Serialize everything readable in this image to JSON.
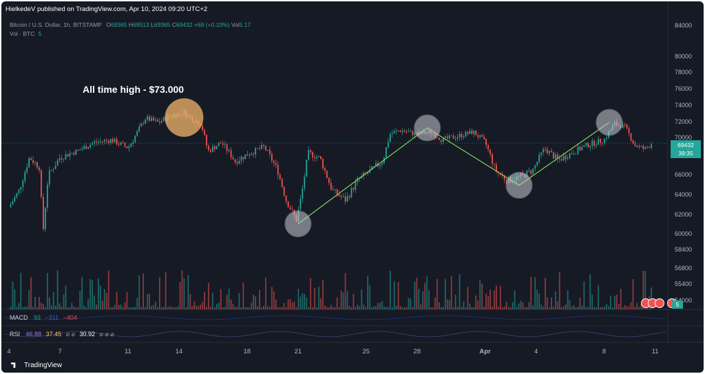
{
  "header": {
    "published": "HielkedeV published on TradingView.com, Apr 10, 2024 09:20 UTC+2",
    "symbol": "Bitcoin / U.S. Dollar, 1h, BITSTAMP",
    "o_label": "O",
    "o": "69365",
    "h_label": "H",
    "h": "69513",
    "l_label": "L",
    "l": "69365",
    "c_label": "C",
    "c": "69432",
    "change": "+69 (+0.10%)",
    "vol_label": "Vol",
    "vol_value": "5.17",
    "vol_pane_label": "Vol · BTC",
    "vol_pane_value": "5"
  },
  "indicators": {
    "macd": {
      "name": "MACD",
      "v1": "93",
      "v2": "−311",
      "v3": "−404"
    },
    "rsi": {
      "name": "RSI",
      "v1": "46.88",
      "v2": "37.45",
      "sym1": "⌀ ⌀",
      "v3": "30.92",
      "sym2": "⌀ ⌀ ⌀"
    }
  },
  "annotation": {
    "ath_text": "All time high - $73.000"
  },
  "price_tag": {
    "price": "69432",
    "countdown": "39:35"
  },
  "vol_tag": "5",
  "footer": {
    "brand": "TradingView"
  },
  "colors": {
    "bg": "#161a25",
    "up": "#26a69a",
    "down": "#ef5350",
    "trend": "#7ed957",
    "circle": "#c8cbd2",
    "ath_circle": "#f3b56b"
  },
  "chart_data": {
    "type": "candlestick",
    "title": "Bitcoin / U.S. Dollar, 1h, BITSTAMP",
    "y_ticks": [
      84000,
      80000,
      78000,
      76000,
      74000,
      72000,
      70000,
      68000,
      66000,
      64000,
      62000,
      60000,
      58400,
      56800,
      55400,
      54000
    ],
    "x_ticks": [
      {
        "label": "4",
        "day": 0
      },
      {
        "label": "7",
        "day": 3
      },
      {
        "label": "11",
        "day": 7
      },
      {
        "label": "14",
        "day": 10
      },
      {
        "label": "18",
        "day": 14
      },
      {
        "label": "21",
        "day": 17
      },
      {
        "label": "25",
        "day": 21
      },
      {
        "label": "28",
        "day": 24
      },
      {
        "label": "Apr",
        "day": 28
      },
      {
        "label": "4",
        "day": 31
      },
      {
        "label": "8",
        "day": 35
      },
      {
        "label": "11",
        "day": 38
      }
    ],
    "price_path": [
      [
        0,
        62800
      ],
      [
        0.6,
        64500
      ],
      [
        1.2,
        67800
      ],
      [
        1.8,
        66800
      ],
      [
        2.0,
        60200
      ],
      [
        2.3,
        66000
      ],
      [
        3.0,
        67800
      ],
      [
        4.0,
        68500
      ],
      [
        5.0,
        69500
      ],
      [
        6.0,
        69800
      ],
      [
        7.0,
        68900
      ],
      [
        7.3,
        69800
      ],
      [
        8.0,
        72500
      ],
      [
        8.8,
        72000
      ],
      [
        9.5,
        72800
      ],
      [
        10.3,
        73200
      ],
      [
        10.8,
        72400
      ],
      [
        11.3,
        71800
      ],
      [
        11.7,
        68500
      ],
      [
        12.5,
        69500
      ],
      [
        13.3,
        67400
      ],
      [
        14.0,
        68100
      ],
      [
        15.0,
        69000
      ],
      [
        15.8,
        66500
      ],
      [
        16.3,
        63500
      ],
      [
        16.9,
        61500
      ],
      [
        17.2,
        64000
      ],
      [
        17.6,
        68300
      ],
      [
        18.3,
        67700
      ],
      [
        19.0,
        64500
      ],
      [
        19.8,
        63500
      ],
      [
        20.5,
        65500
      ],
      [
        21.3,
        66500
      ],
      [
        22.0,
        67500
      ],
      [
        22.4,
        70500
      ],
      [
        23.0,
        71000
      ],
      [
        24.0,
        70500
      ],
      [
        24.8,
        70800
      ],
      [
        25.5,
        69800
      ],
      [
        26.3,
        70200
      ],
      [
        27.3,
        70800
      ],
      [
        28.0,
        69500
      ],
      [
        28.6,
        66500
      ],
      [
        29.3,
        65500
      ],
      [
        30.0,
        65800
      ],
      [
        30.8,
        66500
      ],
      [
        31.5,
        68800
      ],
      [
        32.3,
        67500
      ],
      [
        33.0,
        68200
      ],
      [
        34.0,
        69200
      ],
      [
        35.0,
        69800
      ],
      [
        35.6,
        71800
      ],
      [
        36.2,
        71500
      ],
      [
        36.8,
        69200
      ],
      [
        37.4,
        68700
      ],
      [
        37.8,
        69432
      ]
    ],
    "pattern_points": [
      {
        "day": 17.0,
        "price": 61100
      },
      {
        "day": 24.6,
        "price": 71300
      },
      {
        "day": 30.0,
        "price": 65000
      },
      {
        "day": 35.3,
        "price": 72000
      }
    ],
    "all_time_high": {
      "day": 10.3,
      "price": 73000
    },
    "last_price": 69432
  }
}
